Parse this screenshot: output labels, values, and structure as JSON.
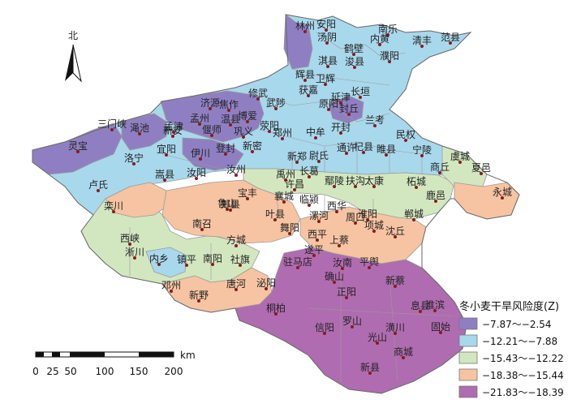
{
  "north_label": "北",
  "legend": {
    "title": "冬小麦干旱风险度(Z)",
    "items": [
      {
        "label": "−7.87～−2.54",
        "color": "#8f7fc2"
      },
      {
        "label": "−12.21～−7.88",
        "color": "#a8d8ec"
      },
      {
        "label": "−15.43～−12.22",
        "color": "#d2e7bf"
      },
      {
        "label": "−18.38～−15.44",
        "color": "#f6c4a2"
      },
      {
        "label": "−21.83～−18.39",
        "color": "#b06cb0"
      }
    ]
  },
  "scale_bar": {
    "unit": "km",
    "ticks": [
      "0",
      "25",
      "50",
      "100",
      "150",
      "200"
    ]
  },
  "colors": {
    "risk1": "#8f7fc2",
    "risk2": "#a8d8ec",
    "risk3": "#d2e7bf",
    "risk4": "#f6c4a2",
    "risk5": "#b06cb0",
    "border": "#9a9a9a",
    "station": "#8a1a1a"
  },
  "stations": [
    "林州",
    "安阳",
    "南乐",
    "汤阴",
    "内黄",
    "清丰",
    "范县",
    "鹤壁",
    "濮阳",
    "淇县",
    "浚县",
    "辉县",
    "卫辉",
    "获嘉",
    "长垣",
    "原阳",
    "延津",
    "封丘",
    "济源",
    "焦作",
    "修武",
    "武陟",
    "孟州",
    "温县",
    "博爱",
    "孟津",
    "三门峡",
    "渑池",
    "新安",
    "偃师",
    "巩义",
    "荥阳",
    "郑州",
    "中牟",
    "开封",
    "兰考",
    "民权",
    "杞县",
    "睢县",
    "宁陵",
    "虞城",
    "灵宝",
    "洛宁",
    "宜阳",
    "伊川",
    "登封",
    "新密",
    "新郑",
    "尉氏",
    "通许",
    "太康",
    "商丘",
    "夏邑",
    "永城",
    "卢氏",
    "嵩县",
    "汝阳",
    "汝州",
    "禹州",
    "长葛",
    "许昌",
    "鄢陵",
    "扶沟",
    "柘城",
    "鹿邑",
    "郸城",
    "宝丰",
    "郏县",
    "襄城",
    "临颍",
    "西华",
    "淮阳",
    "沈丘",
    "栾川",
    "鲁山",
    "叶县",
    "舞阳",
    "漯河",
    "周口",
    "项城",
    "南召",
    "方城",
    "西平",
    "上蔡",
    "西峡",
    "淅川",
    "内乡",
    "镇平",
    "南阳",
    "社旗",
    "遂平",
    "驻马店",
    "汝南",
    "平舆",
    "确山",
    "邓州",
    "新野",
    "唐河",
    "泌阳",
    "正阳",
    "新蔡",
    "桐柏",
    "淮滨",
    "息县",
    "信阳",
    "罗山",
    "光山",
    "潢川",
    "固始",
    "商城",
    "新县"
  ]
}
